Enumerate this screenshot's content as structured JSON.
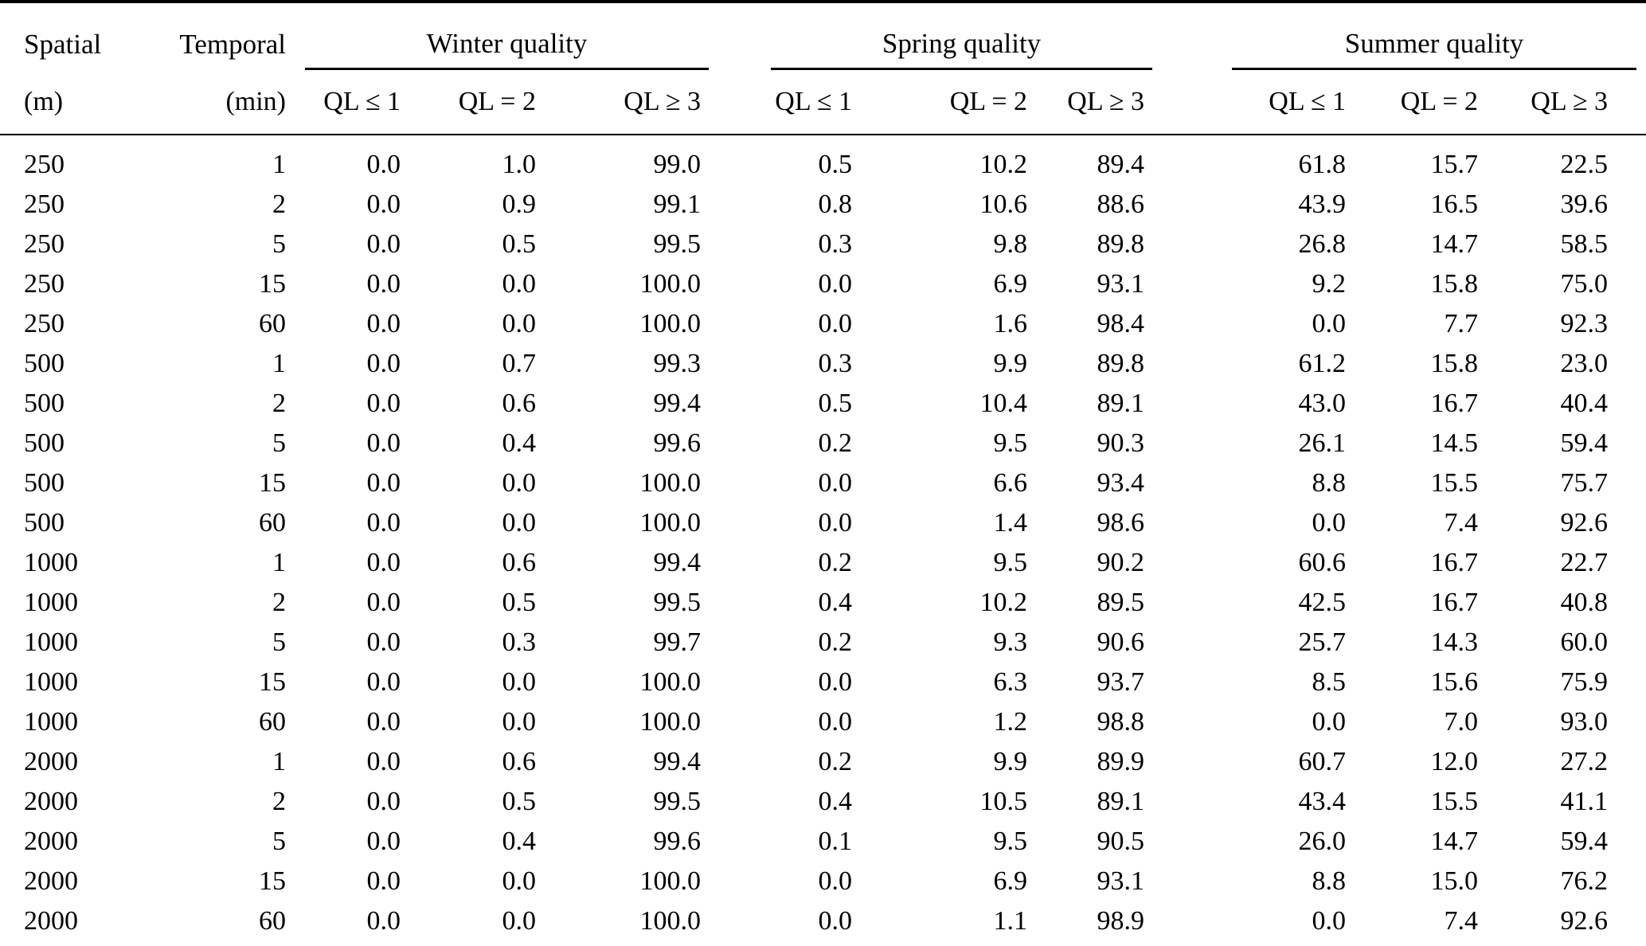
{
  "colors": {
    "background": "#ffffff",
    "text": "#000000",
    "rule": "#000000"
  },
  "table": {
    "header": {
      "spatial_line1": "Spatial",
      "spatial_line2": "(m)",
      "temporal_line1": "Temporal",
      "temporal_line2": "(min)",
      "groups": [
        {
          "label": "Winter quality",
          "subcols": [
            "QL ≤ 1",
            "QL = 2",
            "QL ≥ 3"
          ]
        },
        {
          "label": "Spring quality",
          "subcols": [
            "QL ≤ 1",
            "QL = 2",
            "QL ≥ 3"
          ]
        },
        {
          "label": "Summer quality",
          "subcols": [
            "QL ≤ 1",
            "QL = 2",
            "QL ≥ 3"
          ]
        }
      ]
    },
    "rows": [
      {
        "spatial": "250",
        "temporal": "1",
        "winter": [
          "0.0",
          "1.0",
          "99.0"
        ],
        "spring": [
          "0.5",
          "10.2",
          "89.4"
        ],
        "summer": [
          "61.8",
          "15.7",
          "22.5"
        ]
      },
      {
        "spatial": "250",
        "temporal": "2",
        "winter": [
          "0.0",
          "0.9",
          "99.1"
        ],
        "spring": [
          "0.8",
          "10.6",
          "88.6"
        ],
        "summer": [
          "43.9",
          "16.5",
          "39.6"
        ]
      },
      {
        "spatial": "250",
        "temporal": "5",
        "winter": [
          "0.0",
          "0.5",
          "99.5"
        ],
        "spring": [
          "0.3",
          "9.8",
          "89.8"
        ],
        "summer": [
          "26.8",
          "14.7",
          "58.5"
        ]
      },
      {
        "spatial": "250",
        "temporal": "15",
        "winter": [
          "0.0",
          "0.0",
          "100.0"
        ],
        "spring": [
          "0.0",
          "6.9",
          "93.1"
        ],
        "summer": [
          "9.2",
          "15.8",
          "75.0"
        ]
      },
      {
        "spatial": "250",
        "temporal": "60",
        "winter": [
          "0.0",
          "0.0",
          "100.0"
        ],
        "spring": [
          "0.0",
          "1.6",
          "98.4"
        ],
        "summer": [
          "0.0",
          "7.7",
          "92.3"
        ]
      },
      {
        "spatial": "500",
        "temporal": "1",
        "winter": [
          "0.0",
          "0.7",
          "99.3"
        ],
        "spring": [
          "0.3",
          "9.9",
          "89.8"
        ],
        "summer": [
          "61.2",
          "15.8",
          "23.0"
        ]
      },
      {
        "spatial": "500",
        "temporal": "2",
        "winter": [
          "0.0",
          "0.6",
          "99.4"
        ],
        "spring": [
          "0.5",
          "10.4",
          "89.1"
        ],
        "summer": [
          "43.0",
          "16.7",
          "40.4"
        ]
      },
      {
        "spatial": "500",
        "temporal": "5",
        "winter": [
          "0.0",
          "0.4",
          "99.6"
        ],
        "spring": [
          "0.2",
          "9.5",
          "90.3"
        ],
        "summer": [
          "26.1",
          "14.5",
          "59.4"
        ]
      },
      {
        "spatial": "500",
        "temporal": "15",
        "winter": [
          "0.0",
          "0.0",
          "100.0"
        ],
        "spring": [
          "0.0",
          "6.6",
          "93.4"
        ],
        "summer": [
          "8.8",
          "15.5",
          "75.7"
        ]
      },
      {
        "spatial": "500",
        "temporal": "60",
        "winter": [
          "0.0",
          "0.0",
          "100.0"
        ],
        "spring": [
          "0.0",
          "1.4",
          "98.6"
        ],
        "summer": [
          "0.0",
          "7.4",
          "92.6"
        ]
      },
      {
        "spatial": "1000",
        "temporal": "1",
        "winter": [
          "0.0",
          "0.6",
          "99.4"
        ],
        "spring": [
          "0.2",
          "9.5",
          "90.2"
        ],
        "summer": [
          "60.6",
          "16.7",
          "22.7"
        ]
      },
      {
        "spatial": "1000",
        "temporal": "2",
        "winter": [
          "0.0",
          "0.5",
          "99.5"
        ],
        "spring": [
          "0.4",
          "10.2",
          "89.5"
        ],
        "summer": [
          "42.5",
          "16.7",
          "40.8"
        ]
      },
      {
        "spatial": "1000",
        "temporal": "5",
        "winter": [
          "0.0",
          "0.3",
          "99.7"
        ],
        "spring": [
          "0.2",
          "9.3",
          "90.6"
        ],
        "summer": [
          "25.7",
          "14.3",
          "60.0"
        ]
      },
      {
        "spatial": "1000",
        "temporal": "15",
        "winter": [
          "0.0",
          "0.0",
          "100.0"
        ],
        "spring": [
          "0.0",
          "6.3",
          "93.7"
        ],
        "summer": [
          "8.5",
          "15.6",
          "75.9"
        ]
      },
      {
        "spatial": "1000",
        "temporal": "60",
        "winter": [
          "0.0",
          "0.0",
          "100.0"
        ],
        "spring": [
          "0.0",
          "1.2",
          "98.8"
        ],
        "summer": [
          "0.0",
          "7.0",
          "93.0"
        ]
      },
      {
        "spatial": "2000",
        "temporal": "1",
        "winter": [
          "0.0",
          "0.6",
          "99.4"
        ],
        "spring": [
          "0.2",
          "9.9",
          "89.9"
        ],
        "summer": [
          "60.7",
          "12.0",
          "27.2"
        ]
      },
      {
        "spatial": "2000",
        "temporal": "2",
        "winter": [
          "0.0",
          "0.5",
          "99.5"
        ],
        "spring": [
          "0.4",
          "10.5",
          "89.1"
        ],
        "summer": [
          "43.4",
          "15.5",
          "41.1"
        ]
      },
      {
        "spatial": "2000",
        "temporal": "5",
        "winter": [
          "0.0",
          "0.4",
          "99.6"
        ],
        "spring": [
          "0.1",
          "9.5",
          "90.5"
        ],
        "summer": [
          "26.0",
          "14.7",
          "59.4"
        ]
      },
      {
        "spatial": "2000",
        "temporal": "15",
        "winter": [
          "0.0",
          "0.0",
          "100.0"
        ],
        "spring": [
          "0.0",
          "6.9",
          "93.1"
        ],
        "summer": [
          "8.8",
          "15.0",
          "76.2"
        ]
      },
      {
        "spatial": "2000",
        "temporal": "60",
        "winter": [
          "0.0",
          "0.0",
          "100.0"
        ],
        "spring": [
          "0.0",
          "1.1",
          "98.9"
        ],
        "summer": [
          "0.0",
          "7.4",
          "92.6"
        ]
      }
    ]
  }
}
